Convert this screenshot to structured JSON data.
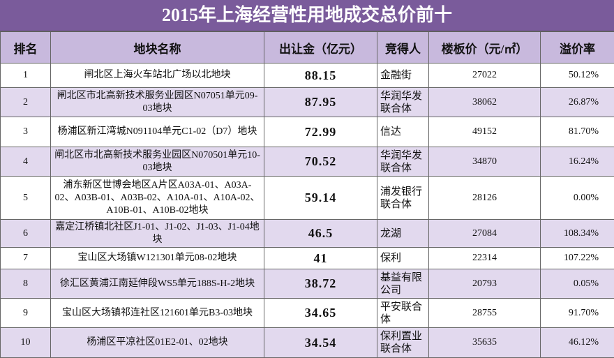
{
  "title": "2015年上海经营性用地成交总价前十",
  "table": {
    "header": [
      "排名",
      "地块名称",
      "出让金（亿元）",
      "竞得人",
      "楼板价（元/㎡）",
      "溢价率"
    ],
    "rows": [
      [
        "1",
        "闸北区上海火车站北广场以北地块",
        "88.15",
        "金融街",
        "27022",
        "50.12%"
      ],
      [
        "2",
        "闸北区市北高新技术服务业园区N07051单元09-03地块",
        "87.95",
        "华润华发联合体",
        "38062",
        "26.87%"
      ],
      [
        "3",
        "杨浦区新江湾城N091104单元C1-02（D7）地块",
        "72.99",
        "信达",
        "49152",
        "81.70%"
      ],
      [
        "4",
        "闸北区市北高新技术服务业园区N070501单元10-03地块",
        "70.52",
        "华润华发联合体",
        "34870",
        "16.24%"
      ],
      [
        "5",
        "浦东新区世博会地区A片区A03A-01、A03A-02、A03B-01、A03B-02、A10A-01、A10A-02、A10B-01、A10B-02地块",
        "59.14",
        "浦发银行联合体",
        "28126",
        "0.00%"
      ],
      [
        "6",
        "嘉定江桥镇北社区J1-01、J1-02、J1-03、J1-04地块",
        "46.5",
        "龙湖",
        "27084",
        "108.34%"
      ],
      [
        "7",
        "宝山区大场镇W121301单元08-02地块",
        "41",
        "保利",
        "22314",
        "107.22%"
      ],
      [
        "8",
        "徐汇区黄浦江南延伸段WS5单元188S-H-2地块",
        "38.72",
        "基益有限公司",
        "20793",
        "0.05%"
      ],
      [
        "9",
        "宝山区大场镇祁连社区121601单元B3-03地块",
        "34.65",
        "平安联合体",
        "28755",
        "91.70%"
      ],
      [
        "10",
        "杨浦区平凉社区01E2-01、02地块",
        "34.54",
        "保利置业联合体",
        "35635",
        "46.12%"
      ]
    ]
  }
}
